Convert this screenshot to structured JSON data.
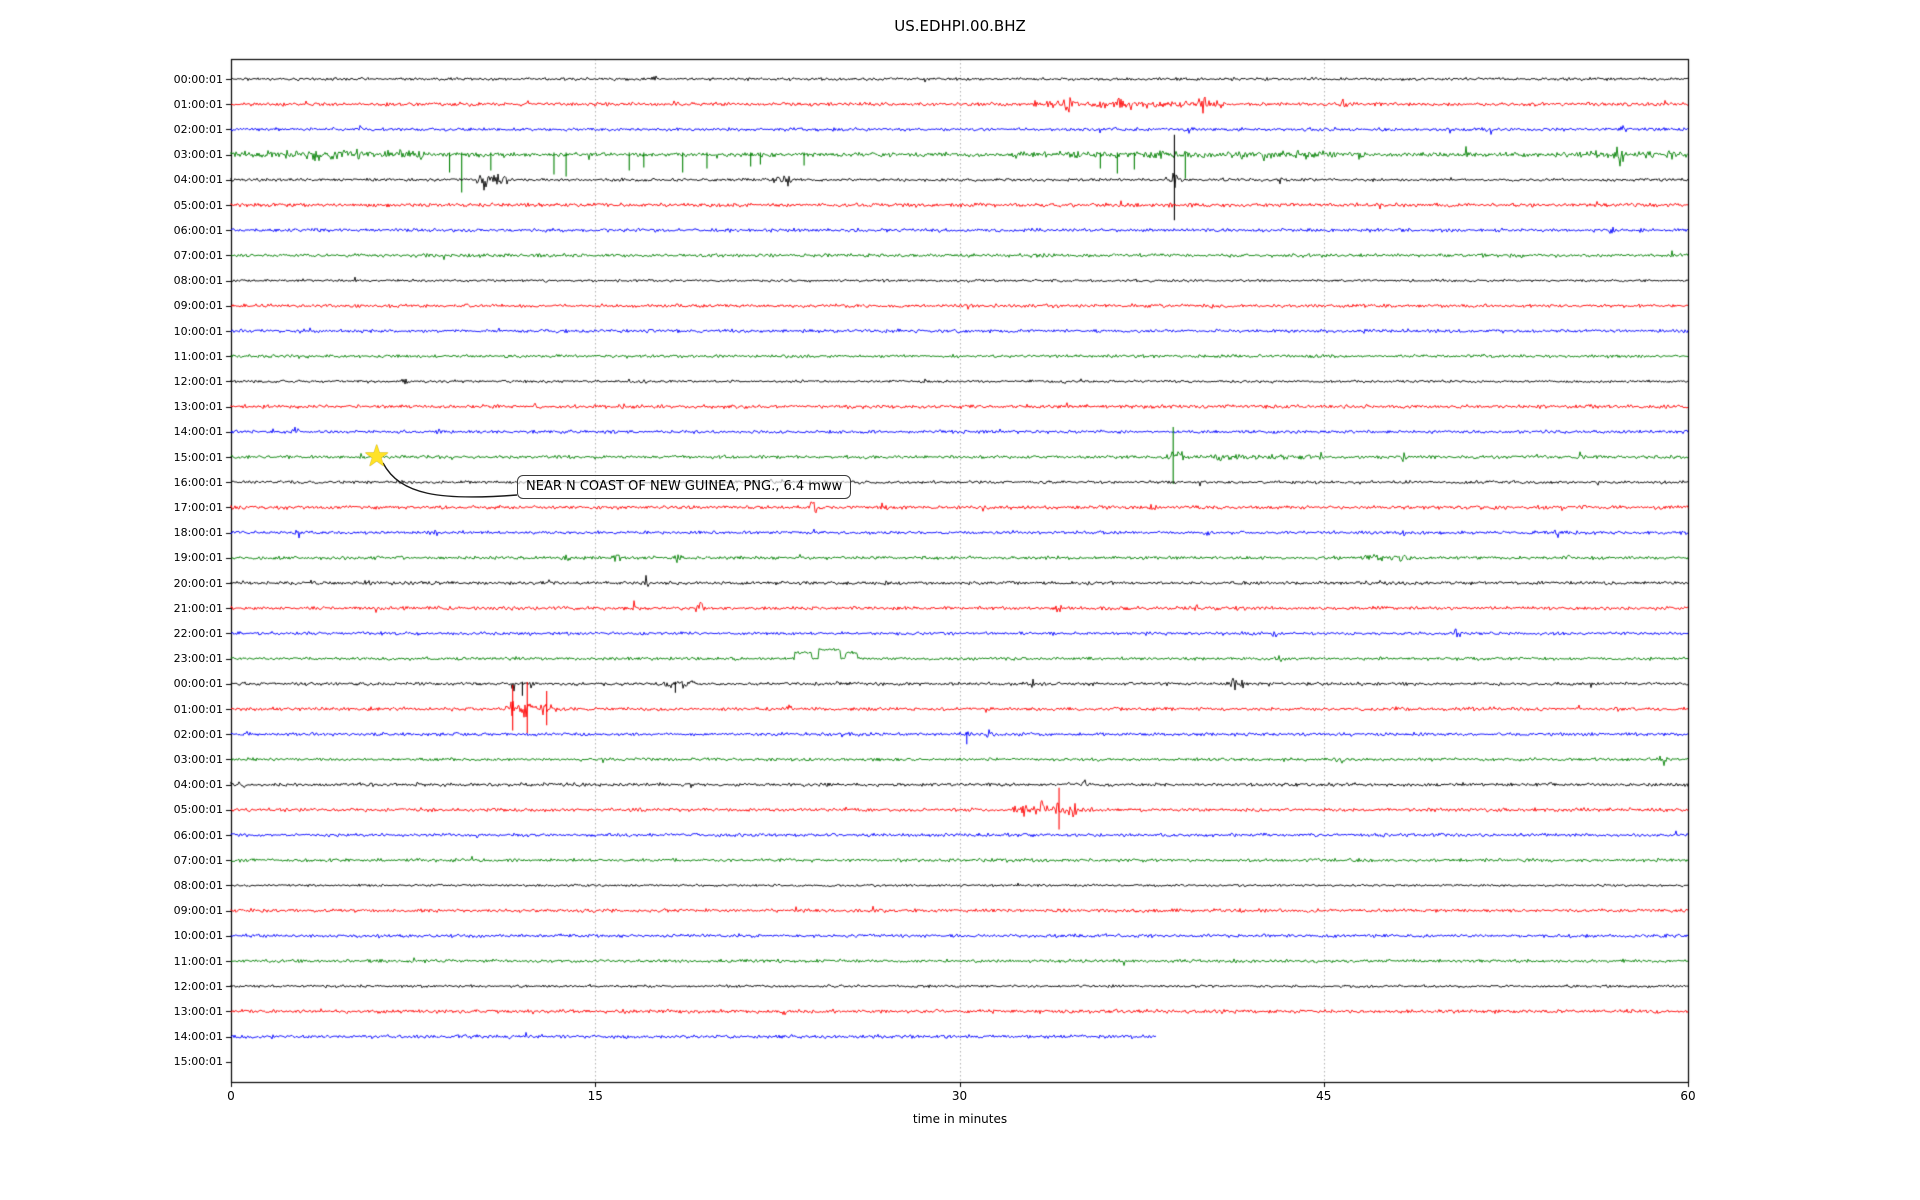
{
  "title": "US.EDHPI.00.BHZ",
  "annotation": {
    "text": "NEAR N COAST OF NEW GUINEA, PNG., 6.4 mww",
    "star": {
      "row": "15:00:01",
      "minute": 6.0,
      "color": "#ffe227"
    }
  },
  "chart_data": {
    "type": "line",
    "subtype": "seismogram-dayplot",
    "title": "US.EDHPI.00.BHZ",
    "xlabel": "time in minutes",
    "xlim": [
      0,
      60
    ],
    "x_ticks": [
      0,
      15,
      30,
      45,
      60
    ],
    "x_tick_labels": [
      "0",
      "15",
      "30",
      "45",
      "60"
    ],
    "grid": {
      "vertical_at_minutes": [
        15,
        30,
        45
      ],
      "style": "dotted",
      "color": "#b0b0b0"
    },
    "trace_color_cycle": [
      "#000000",
      "#ff0000",
      "#0000ff",
      "#008000"
    ],
    "frame_color": "#000000",
    "rows": [
      {
        "label": "00:00:01",
        "noise": 2.1,
        "events": [
          {
            "t": "spike",
            "m": 17.4,
            "a": 7
          }
        ]
      },
      {
        "label": "01:00:01",
        "noise": 2.6,
        "events": [
          {
            "t": "burst",
            "m": 33,
            "d": 8,
            "a": 2.2
          },
          {
            "t": "spike",
            "m": 34.5,
            "a": 8
          },
          {
            "t": "spike",
            "m": 36.6,
            "a": 12
          },
          {
            "t": "spike",
            "m": 40,
            "a": 9
          },
          {
            "t": "spike",
            "m": 45.8,
            "a": 6
          }
        ]
      },
      {
        "label": "02:00:01",
        "noise": 2.4,
        "events": [
          {
            "t": "spike",
            "m": 5.2,
            "a": 5
          },
          {
            "t": "spike",
            "m": 39.4,
            "a": 5
          },
          {
            "t": "spike",
            "m": 57.4,
            "a": 6
          }
        ]
      },
      {
        "label": "03:00:01",
        "noise": 3.1,
        "events": [
          {
            "t": "burst",
            "m": 0,
            "d": 8,
            "a": 3.2
          },
          {
            "t": "spike",
            "m": 3.5,
            "a": 9
          },
          {
            "t": "spike",
            "m": 7.9,
            "a": 13
          },
          {
            "t": "down",
            "m": 9.0,
            "a": 18
          },
          {
            "t": "down",
            "m": 9.5,
            "a": 38
          },
          {
            "t": "down",
            "m": 10.7,
            "a": 16
          },
          {
            "t": "down",
            "m": 13.3,
            "a": 20
          },
          {
            "t": "down",
            "m": 13.8,
            "a": 22
          },
          {
            "t": "down",
            "m": 16.4,
            "a": 16
          },
          {
            "t": "down",
            "m": 17.0,
            "a": 13
          },
          {
            "t": "down",
            "m": 18.6,
            "a": 18
          },
          {
            "t": "down",
            "m": 19.6,
            "a": 14
          },
          {
            "t": "down",
            "m": 21.4,
            "a": 12
          },
          {
            "t": "down",
            "m": 21.8,
            "a": 10
          },
          {
            "t": "down",
            "m": 23.6,
            "a": 11
          },
          {
            "t": "burst",
            "m": 32,
            "d": 10,
            "a": 1.4
          },
          {
            "t": "down",
            "m": 35.8,
            "a": 14
          },
          {
            "t": "down",
            "m": 36.5,
            "a": 19
          },
          {
            "t": "down",
            "m": 37.2,
            "a": 15
          },
          {
            "t": "spike",
            "m": 38.3,
            "a": 8
          },
          {
            "t": "down",
            "m": 39.3,
            "a": 24
          },
          {
            "t": "burst",
            "m": 41.5,
            "d": 4,
            "a": 2.4
          },
          {
            "t": "spike",
            "m": 42.5,
            "a": 10
          },
          {
            "t": "spike",
            "m": 46.5,
            "a": 8
          },
          {
            "t": "spike",
            "m": 51,
            "a": 5
          },
          {
            "t": "burst",
            "m": 54.5,
            "d": 5.5,
            "a": 1.6
          },
          {
            "t": "spike",
            "m": 57.2,
            "a": 14
          },
          {
            "t": "spike",
            "m": 59.3,
            "a": 7
          }
        ]
      },
      {
        "label": "04:00:01",
        "noise": 2.2,
        "events": [
          {
            "t": "burst",
            "m": 10.1,
            "d": 1.3,
            "a": 5
          },
          {
            "t": "spike",
            "m": 10.5,
            "a": 9
          },
          {
            "t": "spike",
            "m": 11,
            "a": 11
          },
          {
            "t": "burst",
            "m": 22.3,
            "d": 0.8,
            "a": 4
          },
          {
            "t": "spike",
            "m": 35.2,
            "a": 5
          },
          {
            "t": "big",
            "m": 38.85,
            "a": 45
          },
          {
            "t": "spike",
            "m": 38.85,
            "d": 0.4,
            "a": 10
          },
          {
            "t": "spike",
            "m": 43.2,
            "a": 4
          }
        ]
      },
      {
        "label": "05:00:01",
        "noise": 2.7,
        "events": []
      },
      {
        "label": "06:00:01",
        "noise": 2.4,
        "events": [
          {
            "t": "spike",
            "m": 56.9,
            "a": 5
          }
        ]
      },
      {
        "label": "07:00:01",
        "noise": 2.5,
        "events": []
      },
      {
        "label": "08:00:01",
        "noise": 1.8,
        "events": []
      },
      {
        "label": "09:00:01",
        "noise": 2.4,
        "events": []
      },
      {
        "label": "10:00:01",
        "noise": 2.4,
        "events": []
      },
      {
        "label": "11:00:01",
        "noise": 2.2,
        "events": []
      },
      {
        "label": "12:00:01",
        "noise": 1.9,
        "events": [
          {
            "t": "spike",
            "m": 7.2,
            "a": 4
          },
          {
            "t": "spike",
            "m": 17,
            "a": 3
          }
        ]
      },
      {
        "label": "13:00:01",
        "noise": 2.6,
        "events": []
      },
      {
        "label": "14:00:01",
        "noise": 2.4,
        "events": [
          {
            "t": "spike",
            "m": 2.7,
            "a": 5
          },
          {
            "t": "spike",
            "m": 8.6,
            "a": 4
          }
        ]
      },
      {
        "label": "15:00:01",
        "noise": 2.3,
        "events": [
          {
            "t": "big",
            "m": 38.8,
            "a": 30
          },
          {
            "t": "spike",
            "m": 38.8,
            "d": 0.5,
            "a": 12
          },
          {
            "t": "burst",
            "m": 39,
            "d": 6,
            "a": 1.6
          },
          {
            "t": "spike",
            "m": 40.6,
            "a": 14
          },
          {
            "t": "spike",
            "m": 44.8,
            "a": 7
          },
          {
            "t": "spike",
            "m": 48.3,
            "a": 6
          },
          {
            "t": "spike",
            "m": 55.6,
            "a": 9
          }
        ]
      },
      {
        "label": "16:00:01",
        "noise": 2.2,
        "events": []
      },
      {
        "label": "17:00:01",
        "noise": 2.5,
        "events": [
          {
            "t": "spike",
            "m": 24,
            "a": 9
          },
          {
            "t": "spike",
            "m": 26.9,
            "a": 11
          },
          {
            "t": "spike",
            "m": 31,
            "a": 4
          },
          {
            "t": "spike",
            "m": 38,
            "a": 10
          }
        ]
      },
      {
        "label": "18:00:01",
        "noise": 2.3,
        "events": [
          {
            "t": "spike",
            "m": 2.7,
            "a": 5
          },
          {
            "t": "spike",
            "m": 8.5,
            "a": 4
          },
          {
            "t": "spike",
            "m": 40.2,
            "a": 5
          },
          {
            "t": "spike",
            "m": 48.3,
            "a": 5
          },
          {
            "t": "spike",
            "m": 54.6,
            "a": 6
          }
        ]
      },
      {
        "label": "19:00:01",
        "noise": 2.3,
        "events": [
          {
            "t": "spike",
            "m": 13.8,
            "a": 7
          },
          {
            "t": "spike",
            "m": 15.9,
            "a": 8
          },
          {
            "t": "spike",
            "m": 18.4,
            "a": 8
          },
          {
            "t": "burst",
            "m": 46.5,
            "d": 2.2,
            "a": 3.5
          },
          {
            "t": "spike",
            "m": 55,
            "a": 5
          }
        ]
      },
      {
        "label": "20:00:01",
        "noise": 2.4,
        "events": [
          {
            "t": "spike",
            "m": 5.6,
            "a": 5
          },
          {
            "t": "spike",
            "m": 17.1,
            "a": 10
          }
        ]
      },
      {
        "label": "21:00:01",
        "noise": 2.5,
        "events": [
          {
            "t": "spike",
            "m": 16.5,
            "a": 11
          },
          {
            "t": "spike",
            "m": 19.3,
            "a": 6
          },
          {
            "t": "spike",
            "m": 34,
            "a": 9
          },
          {
            "t": "spike",
            "m": 39.7,
            "a": 9
          }
        ]
      },
      {
        "label": "22:00:01",
        "noise": 2.3,
        "events": [
          {
            "t": "spike",
            "m": 43,
            "a": 8
          },
          {
            "t": "spike",
            "m": 50.5,
            "a": 8
          }
        ]
      },
      {
        "label": "23:00:01",
        "noise": 2.2,
        "events": [
          {
            "t": "step",
            "m": 23.2,
            "d": 0.7,
            "a": 6
          },
          {
            "t": "step",
            "m": 24.2,
            "d": 0.9,
            "a": 9
          },
          {
            "t": "step",
            "m": 25.3,
            "d": 0.5,
            "a": 6
          },
          {
            "t": "spike",
            "m": 43.2,
            "a": 5
          }
        ]
      },
      {
        "label": "00:00:01",
        "noise": 2.3,
        "events": [
          {
            "t": "spike",
            "m": 11.7,
            "a": 9
          },
          {
            "t": "down",
            "m": 12.0,
            "a": 12
          },
          {
            "t": "spike",
            "m": 12.4,
            "a": 7
          },
          {
            "t": "burst",
            "m": 17.8,
            "d": 1.3,
            "a": 3.5
          },
          {
            "t": "down",
            "m": 18.3,
            "a": 9
          },
          {
            "t": "spike",
            "m": 33,
            "a": 4
          },
          {
            "t": "spike",
            "m": 41.3,
            "a": 7
          },
          {
            "t": "spike",
            "m": 41.7,
            "a": 6
          }
        ]
      },
      {
        "label": "01:00:01",
        "noise": 2.5,
        "events": [
          {
            "t": "burst",
            "m": 11.3,
            "d": 2.3,
            "a": 3
          },
          {
            "t": "big",
            "m": 11.6,
            "a": 24
          },
          {
            "t": "spike",
            "m": 11.6,
            "d": 0.3,
            "a": 10
          },
          {
            "t": "big",
            "m": 12.2,
            "a": 27
          },
          {
            "t": "spike",
            "m": 12.2,
            "d": 0.3,
            "a": 12
          },
          {
            "t": "big",
            "m": 13.0,
            "a": 18
          },
          {
            "t": "spike",
            "m": 13.0,
            "d": 0.3,
            "a": 8
          },
          {
            "t": "spike",
            "m": 23,
            "a": 5
          }
        ]
      },
      {
        "label": "02:00:01",
        "noise": 2.3,
        "events": [
          {
            "t": "spike",
            "m": 30.3,
            "a": 6
          },
          {
            "t": "down",
            "m": 30.3,
            "a": 10
          },
          {
            "t": "spike",
            "m": 31.2,
            "a": 5
          }
        ]
      },
      {
        "label": "03:00:01",
        "noise": 2.2,
        "events": [
          {
            "t": "spike",
            "m": 45.7,
            "a": 6
          },
          {
            "t": "spike",
            "m": 59,
            "a": 5
          }
        ]
      },
      {
        "label": "04:00:01",
        "noise": 2.4,
        "events": [
          {
            "t": "spike",
            "m": 0.5,
            "a": 6
          },
          {
            "t": "spike",
            "m": 35.2,
            "a": 6
          },
          {
            "t": "spike",
            "m": 54.3,
            "a": 5
          }
        ]
      },
      {
        "label": "05:00:01",
        "noise": 2.5,
        "events": [
          {
            "t": "burst",
            "m": 32,
            "d": 3.5,
            "a": 3
          },
          {
            "t": "spike",
            "m": 32.7,
            "a": 8
          },
          {
            "t": "spike",
            "m": 33.3,
            "a": 10
          },
          {
            "t": "big",
            "m": 34.1,
            "a": 22
          },
          {
            "t": "spike",
            "m": 34.1,
            "d": 0.4,
            "a": 10
          },
          {
            "t": "spike",
            "m": 34.6,
            "a": 12
          }
        ]
      },
      {
        "label": "06:00:01",
        "noise": 2.4,
        "events": []
      },
      {
        "label": "07:00:01",
        "noise": 2.4,
        "events": []
      },
      {
        "label": "08:00:01",
        "noise": 1.8,
        "events": []
      },
      {
        "label": "09:00:01",
        "noise": 2.5,
        "events": []
      },
      {
        "label": "10:00:01",
        "noise": 2.4,
        "events": []
      },
      {
        "label": "11:00:01",
        "noise": 2.3,
        "events": []
      },
      {
        "label": "12:00:01",
        "noise": 1.9,
        "events": []
      },
      {
        "label": "13:00:01",
        "noise": 2.6,
        "events": []
      },
      {
        "label": "14:00:01",
        "noise": 2.5,
        "ends": 38.1,
        "events": []
      },
      {
        "label": "15:00:01",
        "noise": 0,
        "events": []
      }
    ]
  }
}
